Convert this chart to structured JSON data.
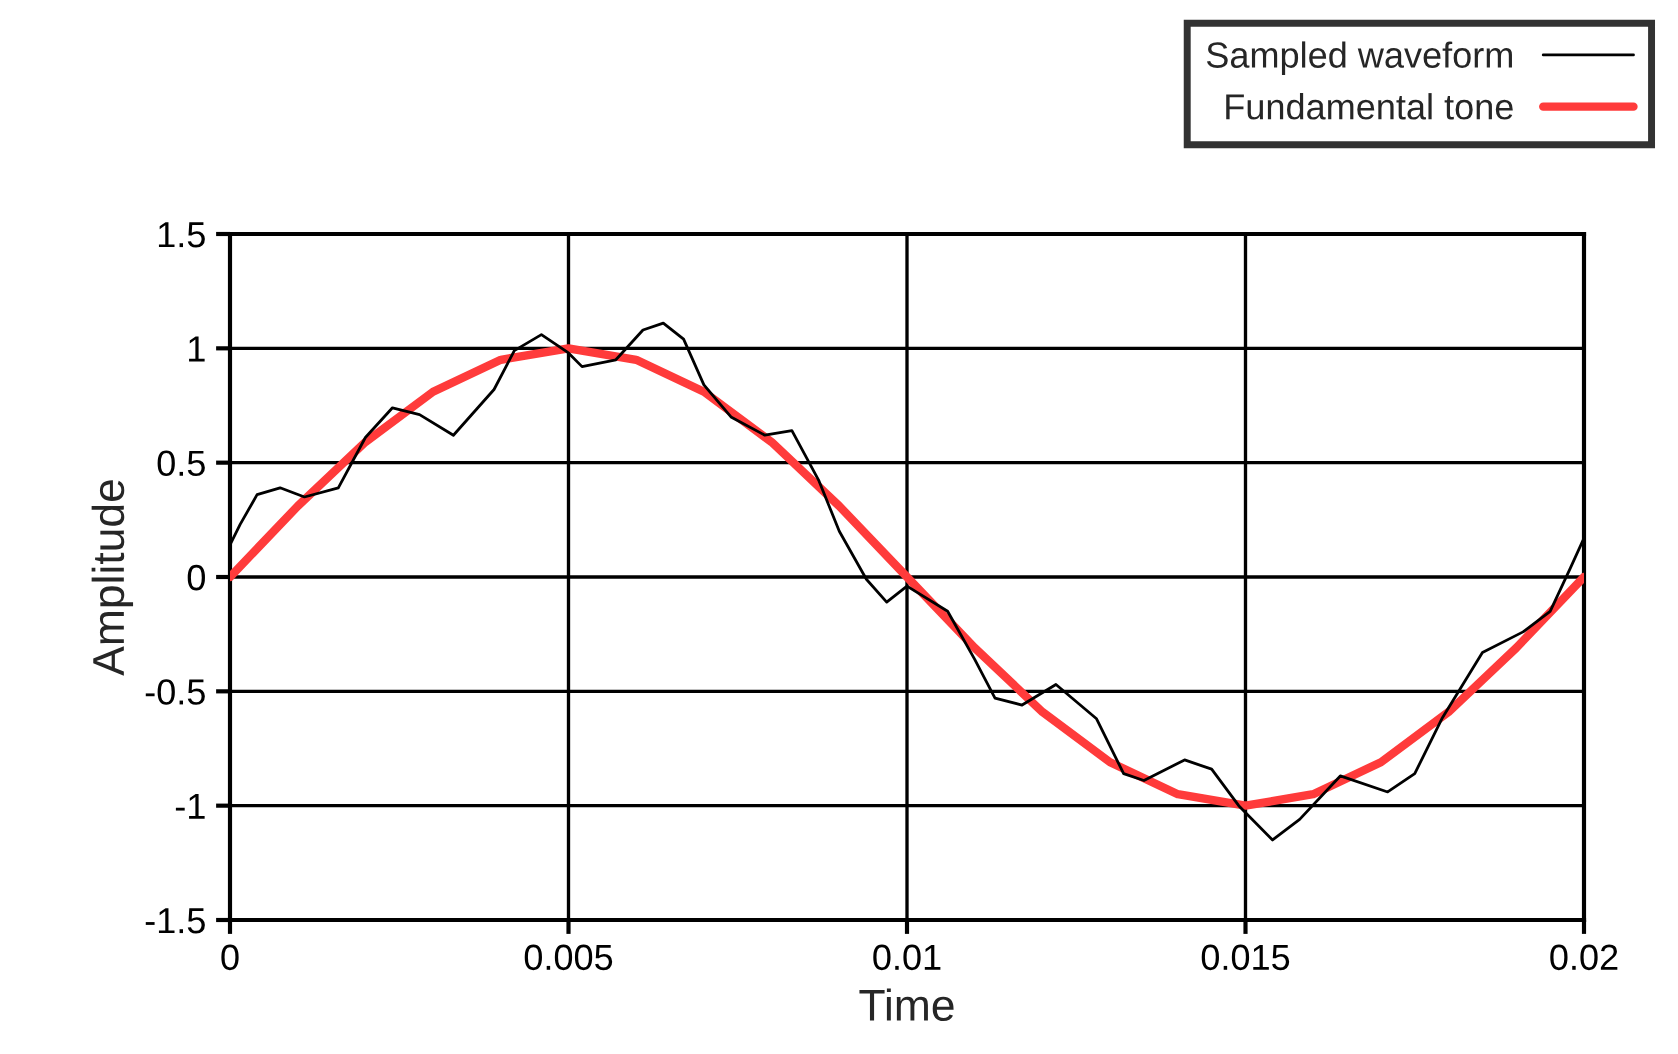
{
  "chart_data": {
    "type": "line",
    "xlabel": "Time",
    "ylabel": "Amplitude",
    "xlim": [
      0,
      0.02
    ],
    "ylim": [
      -1.5,
      1.5
    ],
    "xticks": [
      0,
      0.005,
      0.01,
      0.015,
      0.02
    ],
    "yticks": [
      -1.5,
      -1,
      -0.5,
      0,
      0.5,
      1,
      1.5
    ],
    "grid": true,
    "legend": "top right",
    "marker": "none",
    "line_style": "solid",
    "series": [
      {
        "name": "Sampled waveform",
        "color": "#000000",
        "x": [
          0,
          0.00015,
          0.0004,
          0.00074,
          0.0011,
          0.0016,
          0.002,
          0.0024,
          0.0028,
          0.0033,
          0.0039,
          0.0042,
          0.0046,
          0.005,
          0.0052,
          0.0057,
          0.0061,
          0.0064,
          0.0067,
          0.007,
          0.0074,
          0.0079,
          0.0083,
          0.0087,
          0.009,
          0.0094,
          0.0097,
          0.01,
          0.0106,
          0.011,
          0.0113,
          0.0117,
          0.0122,
          0.0128,
          0.0132,
          0.0135,
          0.0141,
          0.0145,
          0.0149,
          0.0154,
          0.0158,
          0.0164,
          0.0171,
          0.0175,
          0.0179,
          0.0185,
          0.0191,
          0.0195,
          0.0198,
          0.02
        ],
        "values": [
          0.14,
          0.23,
          0.36,
          0.39,
          0.35,
          0.39,
          0.61,
          0.74,
          0.71,
          0.62,
          0.82,
          0.99,
          1.06,
          0.98,
          0.92,
          0.95,
          1.08,
          1.11,
          1.04,
          0.84,
          0.7,
          0.62,
          0.64,
          0.42,
          0.2,
          -0.01,
          -0.11,
          -0.04,
          -0.15,
          -0.36,
          -0.53,
          -0.56,
          -0.47,
          -0.62,
          -0.86,
          -0.89,
          -0.8,
          -0.84,
          -1.0,
          -1.15,
          -1.06,
          -0.87,
          -0.94,
          -0.86,
          -0.62,
          -0.33,
          -0.24,
          -0.15,
          0.04,
          0.17
        ]
      },
      {
        "name": "Fundamental tone",
        "color": "#ff3b3b",
        "x": [
          0,
          0.001,
          0.002,
          0.003,
          0.004,
          0.005,
          0.006,
          0.007,
          0.008,
          0.009,
          0.01,
          0.011,
          0.012,
          0.013,
          0.014,
          0.015,
          0.016,
          0.017,
          0.018,
          0.019,
          0.02
        ],
        "values": [
          0,
          0.31,
          0.59,
          0.81,
          0.95,
          1,
          0.95,
          0.81,
          0.59,
          0.31,
          0,
          -0.31,
          -0.59,
          -0.81,
          -0.95,
          -1,
          -0.95,
          -0.81,
          -0.59,
          -0.31,
          0
        ]
      }
    ]
  }
}
